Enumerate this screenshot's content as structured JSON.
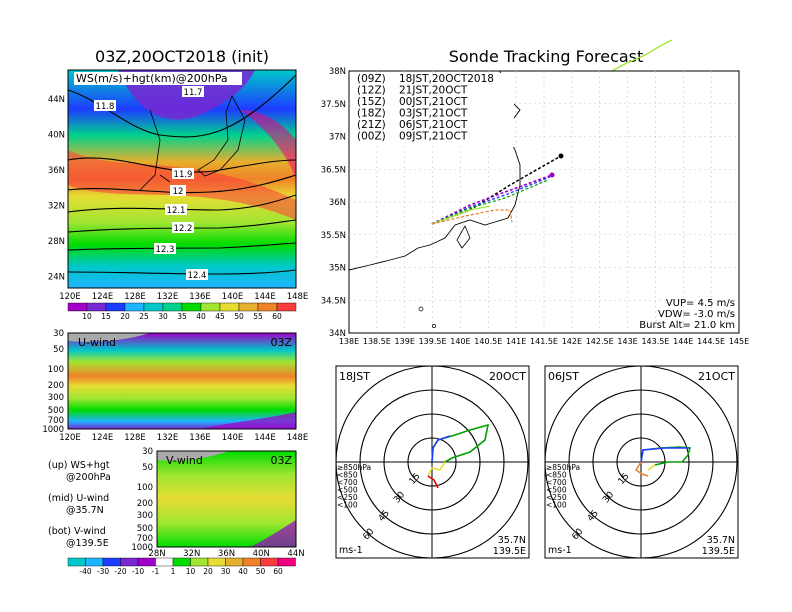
{
  "ws_map": {
    "title": "03Z,20OCT2018 (init)",
    "label": "WS(m/s)+hgt(km)@200hPa",
    "x_ticks": [
      "120E",
      "124E",
      "128E",
      "132E",
      "136E",
      "140E",
      "144E",
      "148E"
    ],
    "y_ticks": [
      "44N",
      "40N",
      "36N",
      "32N",
      "28N",
      "24N"
    ],
    "contour_labels": [
      "11.7",
      "11.8",
      "11.9",
      "12",
      "12.1",
      "12.2",
      "12.3",
      "12.4"
    ],
    "colorbar_ticks": [
      "10",
      "15",
      "20",
      "25",
      "30",
      "35",
      "40",
      "45",
      "50",
      "55",
      "60"
    ]
  },
  "u_wind": {
    "label": "U-wind",
    "time": "03Z",
    "y_ticks": [
      "30",
      "50",
      "100",
      "200",
      "300",
      "500",
      "700",
      "1000"
    ],
    "x_ticks": [
      "120E",
      "124E",
      "128E",
      "132E",
      "136E",
      "140E",
      "144E",
      "148E"
    ]
  },
  "v_wind": {
    "label": "V-wind",
    "time": "03Z",
    "y_ticks": [
      "30",
      "50",
      "100",
      "200",
      "300",
      "500",
      "700",
      "1000"
    ],
    "x_ticks": [
      "28N",
      "32N",
      "36N",
      "40N",
      "44N"
    ]
  },
  "notes": {
    "up": "(up) WS+hgt",
    "up2": "@200hPa",
    "mid": "(mid) U-wind",
    "mid2": "@35.7N",
    "bot": "(bot) V-wind",
    "bot2": "@139.5E"
  },
  "wind_colorbar_ticks": [
    "-40",
    "-30",
    "-20",
    "-10",
    "-1",
    "1",
    "10",
    "20",
    "30",
    "40",
    "50",
    "60"
  ],
  "tracking": {
    "title": "Sonde Tracking Forecast",
    "y_ticks": [
      "38N",
      "37.5N",
      "37N",
      "36.5N",
      "36N",
      "35.5N",
      "35N",
      "34.5N",
      "34N"
    ],
    "x_ticks": [
      "138E",
      "138.5E",
      "139E",
      "139.5E",
      "140E",
      "140.5E",
      "141E",
      "141.5E",
      "142E",
      "142.5E",
      "143E",
      "143.5E",
      "144E",
      "144.5E",
      "145E"
    ],
    "legend": [
      {
        "code": "(09Z)",
        "time": "18JST,20OCT2018",
        "color": "#000000"
      },
      {
        "code": "(12Z)",
        "time": "21JST,20OCT",
        "color": "#a000c8"
      },
      {
        "code": "(15Z)",
        "time": "00JST,21OCT",
        "color": "#1e3cff"
      },
      {
        "code": "(18Z)",
        "time": "03JST,21OCT",
        "color": "#00a000"
      },
      {
        "code": "(21Z)",
        "time": "06JST,21OCT",
        "color": "#a0e632"
      },
      {
        "code": "(00Z)",
        "time": "09JST,21OCT",
        "color": "#f08228"
      }
    ],
    "vup": "VUP=  4.5 m/s",
    "vdw": "VDW= -3.0 m/s",
    "burst": "Burst Alt= 21.0 km"
  },
  "hodo1": {
    "left": "18JST",
    "right": "20OCT",
    "unit": "ms-1",
    "lat": "35.7N",
    "lon": "139.5E",
    "rings": [
      "15",
      "30",
      "45",
      "60"
    ],
    "levels": [
      {
        "label": "≥850hPa",
        "color": "#e60000"
      },
      {
        "label": "<850",
        "color": "#f08228"
      },
      {
        "label": "<700",
        "color": "#e6dc32"
      },
      {
        "label": "<500",
        "color": "#00a000"
      },
      {
        "label": "<250",
        "color": "#1eb4ff"
      },
      {
        "label": "<100",
        "color": "#1e3cff"
      }
    ]
  },
  "hodo2": {
    "left": "06JST",
    "right": "21OCT",
    "unit": "ms-1",
    "lat": "35.7N",
    "lon": "139.5E",
    "rings": [
      "15",
      "30",
      "45",
      "60"
    ]
  },
  "colors": {
    "palette": [
      "#a000c8",
      "#7828d2",
      "#1e3cff",
      "#1eb4ff",
      "#00c8c8",
      "#00d28c",
      "#00dc00",
      "#a0e632",
      "#e6dc32",
      "#e6af2d",
      "#f08228",
      "#fa3c3c",
      "#f00082"
    ]
  }
}
